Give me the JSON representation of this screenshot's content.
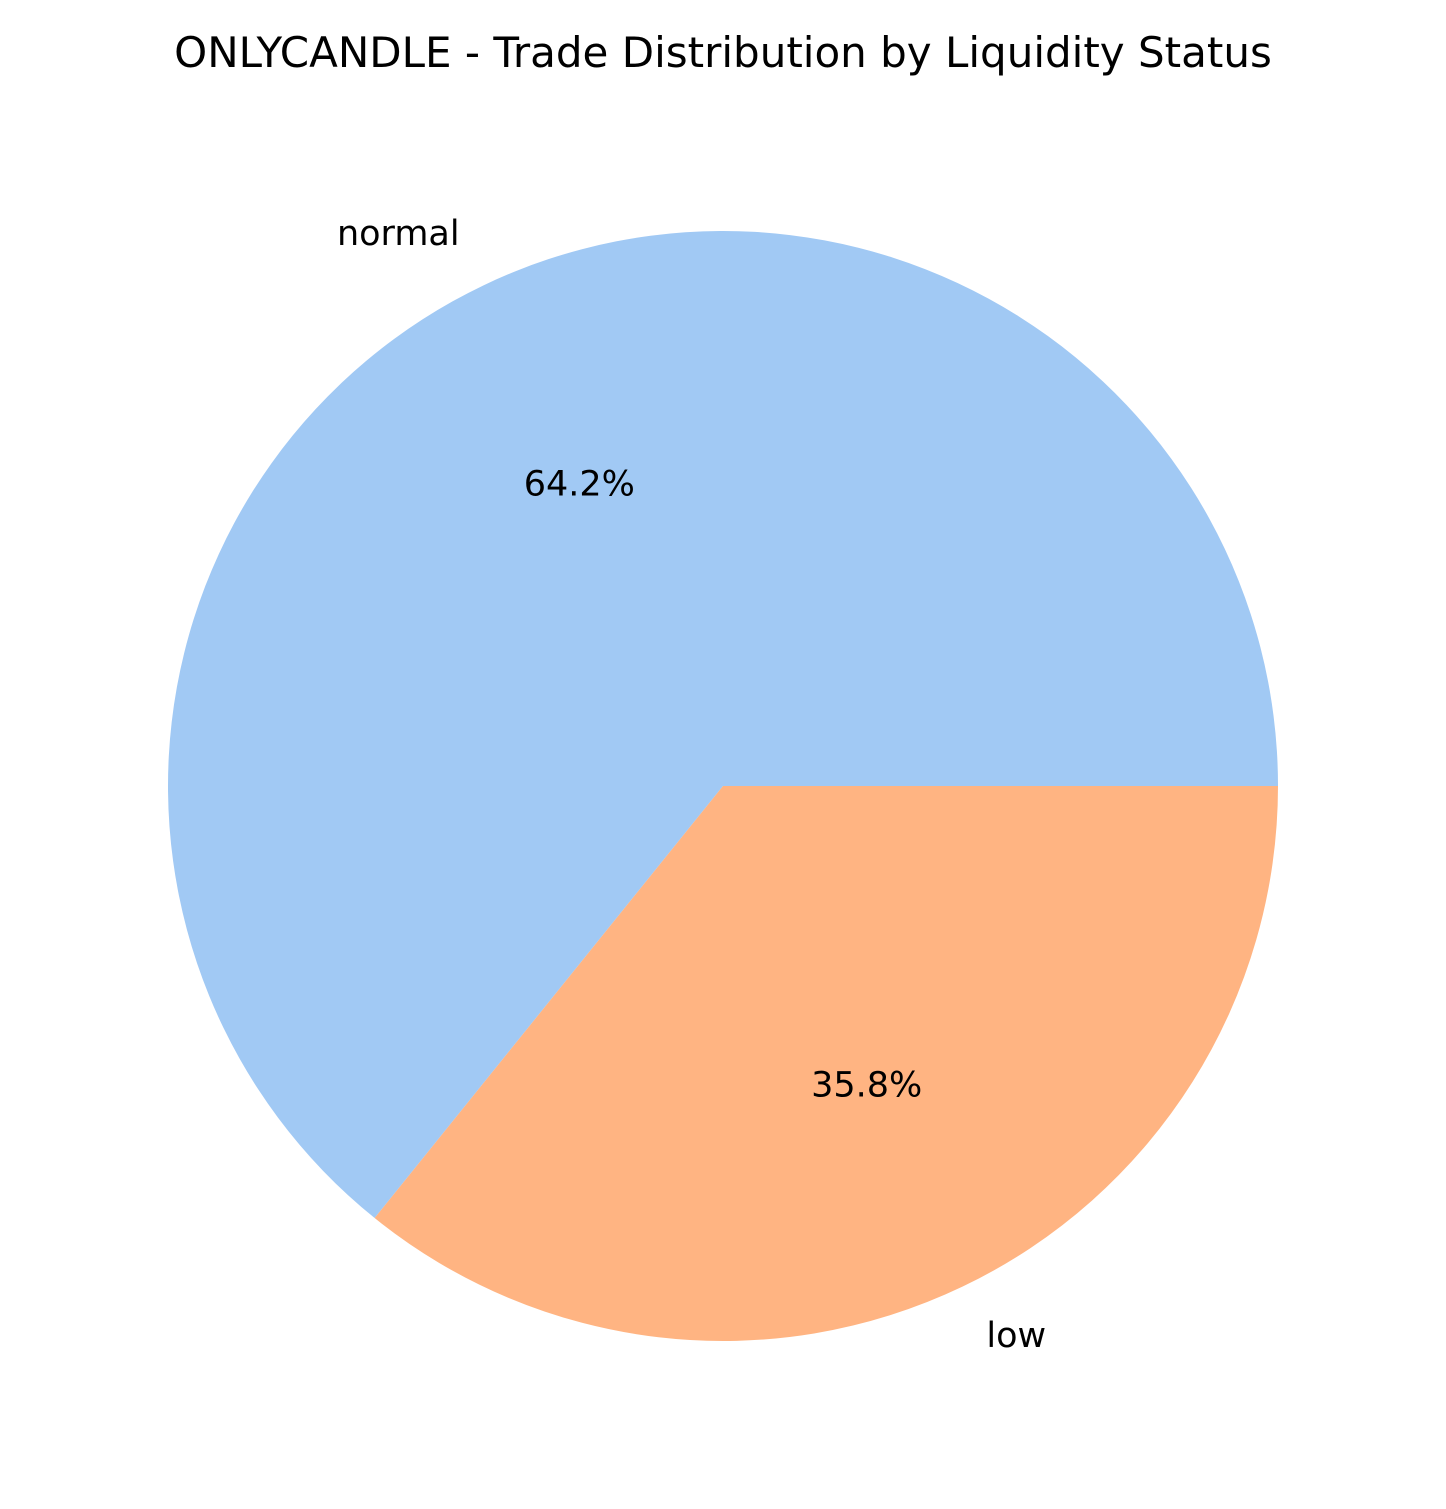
{
  "chart_data": {
    "type": "pie",
    "title": "ONLYCANDLE - Trade Distribution by Liquidity Status",
    "slices": [
      {
        "label": "normal",
        "value": 64.2,
        "pct_label": "64.2%",
        "color": "#a1c9f4"
      },
      {
        "label": "low",
        "value": 35.8,
        "pct_label": "35.8%",
        "color": "#ffb482"
      }
    ],
    "start_angle_deg": 0,
    "direction": "counterclockwise"
  }
}
